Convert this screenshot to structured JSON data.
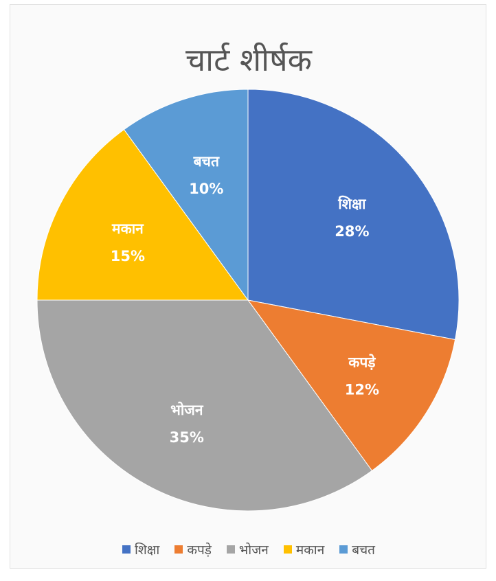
{
  "chart_data": {
    "type": "pie",
    "title": "चार्ट शीर्षक",
    "categories": [
      "शिक्षा",
      "कपड़े",
      "भोजन",
      "मकान",
      "बचत"
    ],
    "values": [
      28,
      12,
      35,
      15,
      10
    ],
    "value_labels": [
      "28%",
      "12%",
      "35%",
      "15%",
      "10%"
    ],
    "colors": [
      "#4472c4",
      "#ed7d31",
      "#a5a5a5",
      "#ffc000",
      "#5b9bd5"
    ],
    "legend_position": "bottom",
    "start_angle": "12 o'clock",
    "direction": "clockwise"
  }
}
